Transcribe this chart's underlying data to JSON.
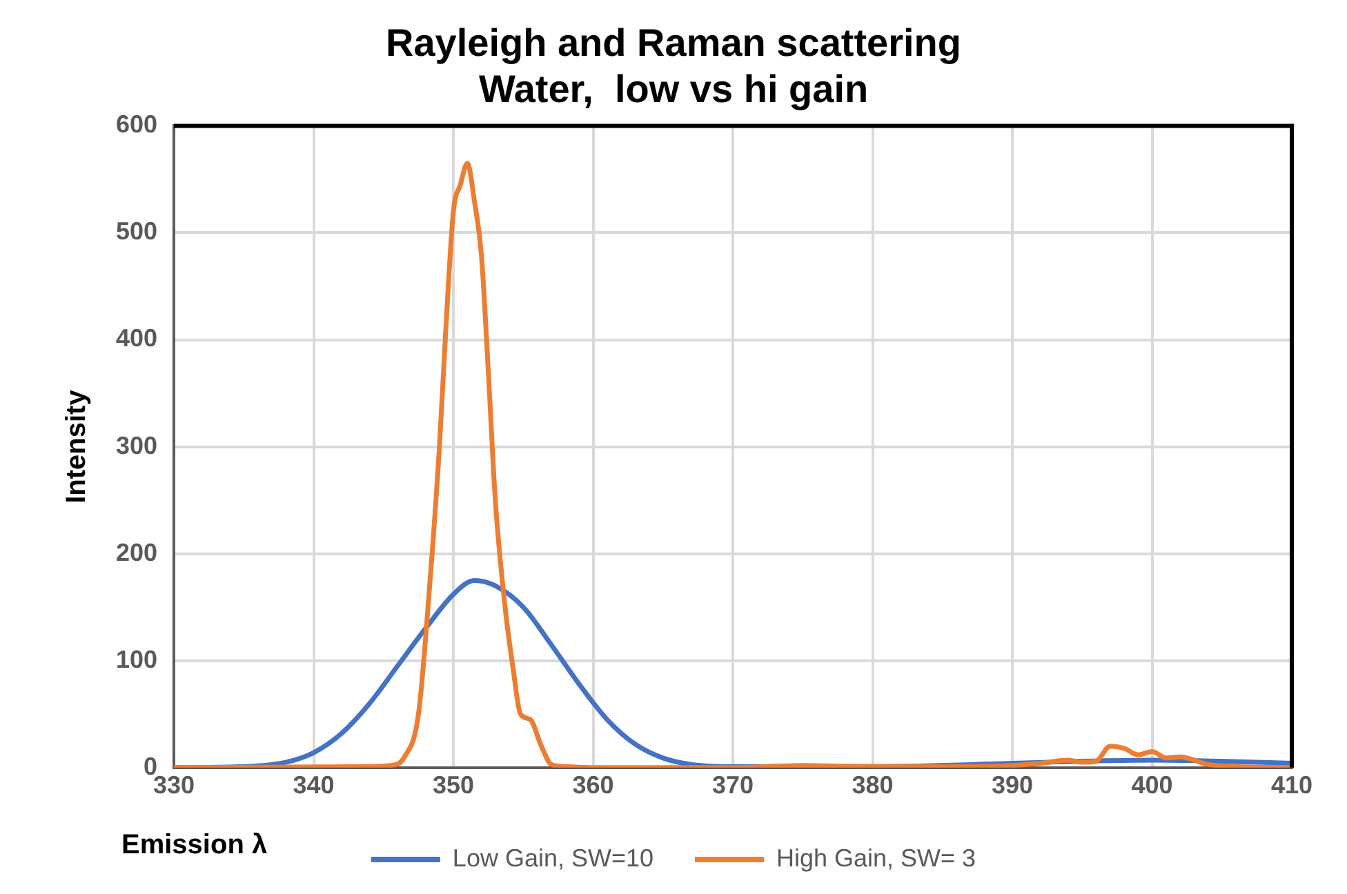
{
  "chart_data": {
    "type": "line",
    "title": [
      "Rayleigh and Raman scattering",
      "Water,  low vs hi gain"
    ],
    "xlabel": "Emission λ",
    "ylabel": "Intensity",
    "xlim": [
      330,
      410
    ],
    "xticks": [
      330,
      340,
      350,
      360,
      370,
      380,
      390,
      400,
      410
    ],
    "ylim": [
      0,
      600
    ],
    "yticks": [
      0,
      100,
      200,
      300,
      400,
      500,
      600
    ],
    "grid": true,
    "legend": "bottom",
    "marker": "none",
    "line_style": "solid",
    "series": [
      {
        "name": "Low Gain, SW=10",
        "color": "#4472c4",
        "x": [
          330,
          335,
          338,
          340,
          342,
          344,
          346,
          348,
          350,
          351.5,
          353,
          355,
          357,
          359,
          361,
          363,
          365,
          367,
          370,
          380,
          390,
          395,
          400,
          405,
          410
        ],
        "values": [
          0,
          1,
          5,
          14,
          32,
          60,
          95,
          130,
          162,
          175,
          170,
          150,
          115,
          78,
          45,
          22,
          9,
          3,
          1,
          1,
          4,
          6,
          7,
          6,
          4
        ]
      },
      {
        "name": "High Gain, SW= 3",
        "color": "#ed7d31",
        "x": [
          330,
          344,
          345.5,
          346.5,
          347.5,
          348.3,
          349,
          349.5,
          350,
          350.5,
          351,
          351.5,
          352,
          352.5,
          353,
          353.7,
          354.3,
          354.8,
          355.5,
          356.3,
          357,
          358,
          360,
          370,
          375,
          380,
          385,
          390,
          392,
          394,
          395,
          396,
          397,
          398,
          399,
          400,
          401,
          402,
          404,
          406,
          410
        ],
        "values": [
          0,
          1,
          2,
          10,
          50,
          170,
          300,
          420,
          520,
          545,
          565,
          530,
          480,
          370,
          250,
          150,
          90,
          50,
          45,
          20,
          3,
          1,
          0,
          0,
          2,
          1,
          1,
          2,
          4,
          7,
          5,
          6,
          20,
          18,
          12,
          15,
          9,
          10,
          3,
          1,
          0
        ]
      }
    ]
  }
}
